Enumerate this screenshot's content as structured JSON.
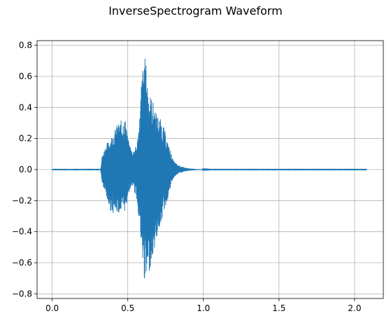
{
  "chart_data": {
    "type": "line",
    "title": "InverseSpectrogram Waveform",
    "xlabel": "",
    "ylabel": "",
    "xlim": [
      -0.1,
      2.19
    ],
    "ylim": [
      -0.83,
      0.83
    ],
    "xticks": [
      0.0,
      0.5,
      1.0,
      1.5,
      2.0
    ],
    "xtick_labels": [
      "0.0",
      "0.5",
      "1.0",
      "1.5",
      "2.0"
    ],
    "yticks": [
      -0.8,
      -0.6,
      -0.4,
      -0.2,
      0.0,
      0.2,
      0.4,
      0.6,
      0.8
    ],
    "ytick_labels": [
      "−0.8",
      "−0.6",
      "−0.4",
      "−0.2",
      "0.0",
      "0.2",
      "0.4",
      "0.6",
      "0.8"
    ],
    "grid": true,
    "series": [
      {
        "color": "#1f77b4",
        "x_start": 0.0,
        "x_end": 2.08,
        "envelope": {
          "x": [
            0.0,
            0.32,
            0.33,
            0.36,
            0.38,
            0.4,
            0.43,
            0.46,
            0.48,
            0.49,
            0.5,
            0.53,
            0.56,
            0.58,
            0.59,
            0.61,
            0.62,
            0.635,
            0.65,
            0.67,
            0.69,
            0.72,
            0.74,
            0.76,
            0.78,
            0.8,
            0.83,
            0.87,
            0.9,
            0.95,
            1.0,
            1.05,
            2.08
          ],
          "upper": [
            0.005,
            0.005,
            0.09,
            0.17,
            0.19,
            0.23,
            0.29,
            0.32,
            0.33,
            0.31,
            0.2,
            0.12,
            0.16,
            0.36,
            0.58,
            0.74,
            0.69,
            0.52,
            0.48,
            0.43,
            0.36,
            0.32,
            0.27,
            0.19,
            0.13,
            0.06,
            0.03,
            0.015,
            0.008,
            0.004,
            0.002,
            0.001,
            0.001
          ],
          "lower": [
            -0.005,
            -0.005,
            -0.09,
            -0.19,
            -0.26,
            -0.28,
            -0.28,
            -0.28,
            -0.27,
            -0.25,
            -0.16,
            -0.1,
            -0.2,
            -0.37,
            -0.56,
            -0.72,
            -0.74,
            -0.7,
            -0.62,
            -0.55,
            -0.45,
            -0.34,
            -0.27,
            -0.21,
            -0.13,
            -0.06,
            -0.03,
            -0.015,
            -0.008,
            -0.004,
            -0.002,
            -0.001,
            -0.001
          ]
        }
      }
    ]
  }
}
